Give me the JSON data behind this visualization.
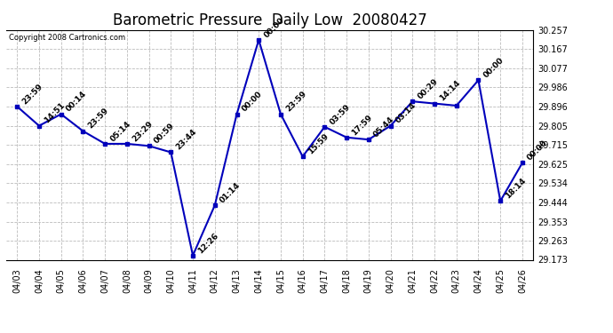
{
  "title": "Barometric Pressure  Daily Low  20080427",
  "copyright": "Copyright 2008 Cartronics.com",
  "x_labels": [
    "04/03",
    "04/04",
    "04/05",
    "04/06",
    "04/07",
    "04/08",
    "04/09",
    "04/10",
    "04/11",
    "04/12",
    "04/13",
    "04/14",
    "04/15",
    "04/16",
    "04/17",
    "04/18",
    "04/19",
    "04/20",
    "04/21",
    "04/22",
    "04/23",
    "04/24",
    "04/25",
    "04/26"
  ],
  "y_values": [
    29.896,
    29.805,
    29.86,
    29.78,
    29.72,
    29.72,
    29.71,
    29.68,
    29.193,
    29.43,
    29.86,
    30.21,
    29.86,
    29.66,
    29.8,
    29.75,
    29.74,
    29.805,
    29.92,
    29.91,
    29.9,
    30.02,
    29.45,
    29.63
  ],
  "point_labels": [
    "23:59",
    "14:51",
    "00:14",
    "23:59",
    "05:14",
    "23:29",
    "00:59",
    "23:44",
    "12:26",
    "01:14",
    "00:00",
    "00:00",
    "23:59",
    "15:59",
    "03:59",
    "17:59",
    "05:44",
    "03:14",
    "00:29",
    "14:14",
    "",
    "00:00",
    "18:14",
    "00:00"
  ],
  "line_color": "#0000bb",
  "marker_color": "#0000bb",
  "background_color": "#ffffff",
  "grid_color": "#bbbbbb",
  "ylim_min": 29.173,
  "ylim_max": 30.257,
  "yticks": [
    29.173,
    29.263,
    29.353,
    29.444,
    29.534,
    29.625,
    29.715,
    29.805,
    29.896,
    29.986,
    30.077,
    30.167,
    30.257
  ],
  "title_fontsize": 12,
  "label_fontsize": 6.5,
  "tick_fontsize": 7,
  "copyright_fontsize": 6
}
